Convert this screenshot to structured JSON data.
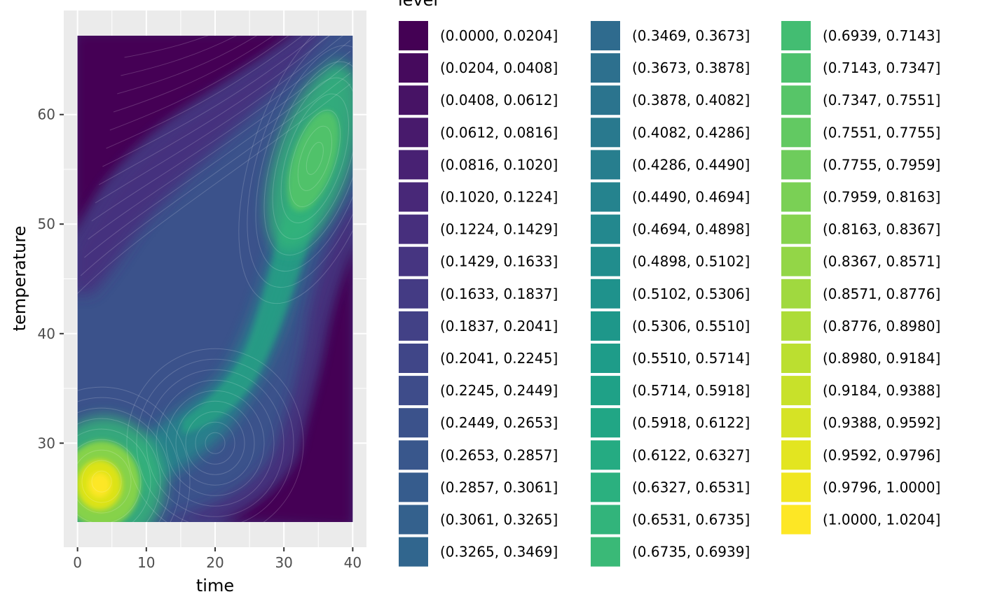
{
  "chart_data": {
    "type": "heatmap",
    "subtype": "filled-density-contour",
    "title": "",
    "xlabel": "time",
    "ylabel": "temperature",
    "xlim": [
      -2,
      42
    ],
    "ylim": [
      20.5,
      69.5
    ],
    "x_ticks": [
      0,
      10,
      20,
      30,
      40
    ],
    "y_ticks": [
      30,
      40,
      50,
      60
    ],
    "data_extent": {
      "x": [
        0,
        40
      ],
      "y": [
        22.8,
        67.2
      ]
    },
    "grid": true,
    "panel_background": "#ebebeb",
    "density_peaks": [
      {
        "x": 3.5,
        "y": 26.5,
        "level": "high"
      },
      {
        "x": 34.5,
        "y": 56,
        "level": "medium-high"
      },
      {
        "x": 20,
        "y": 30,
        "level": "medium"
      }
    ],
    "legend": {
      "title": "level",
      "placement": "right",
      "columns": 3,
      "entries": [
        {
          "label": "(0.0000, 0.0204]",
          "color": "#440154"
        },
        {
          "label": "(0.0204, 0.0408]",
          "color": "#460a5d"
        },
        {
          "label": "(0.0408, 0.0612]",
          "color": "#471365"
        },
        {
          "label": "(0.0612, 0.0816]",
          "color": "#481a6c"
        },
        {
          "label": "(0.0816, 0.1020]",
          "color": "#482173"
        },
        {
          "label": "(0.1020, 0.1224]",
          "color": "#482878"
        },
        {
          "label": "(0.1224, 0.1429]",
          "color": "#472f7d"
        },
        {
          "label": "(0.1429, 0.1633]",
          "color": "#463581"
        },
        {
          "label": "(0.1633, 0.1837]",
          "color": "#443b84"
        },
        {
          "label": "(0.1837, 0.2041]",
          "color": "#424186"
        },
        {
          "label": "(0.2041, 0.2245]",
          "color": "#404688"
        },
        {
          "label": "(0.2245, 0.2449]",
          "color": "#3e4c8a"
        },
        {
          "label": "(0.2449, 0.2653]",
          "color": "#3b528b"
        },
        {
          "label": "(0.2653, 0.2857]",
          "color": "#39578c"
        },
        {
          "label": "(0.2857, 0.3061]",
          "color": "#365c8d"
        },
        {
          "label": "(0.3061, 0.3265]",
          "color": "#34618d"
        },
        {
          "label": "(0.3265, 0.3469]",
          "color": "#31668e"
        },
        {
          "label": "(0.3469, 0.3673]",
          "color": "#2f6b8e"
        },
        {
          "label": "(0.3673, 0.3878]",
          "color": "#2d708e"
        },
        {
          "label": "(0.3878, 0.4082]",
          "color": "#2b748e"
        },
        {
          "label": "(0.4082, 0.4286]",
          "color": "#29798e"
        },
        {
          "label": "(0.4286, 0.4490]",
          "color": "#277e8e"
        },
        {
          "label": "(0.4490, 0.4694]",
          "color": "#25838e"
        },
        {
          "label": "(0.4694, 0.4898]",
          "color": "#23888e"
        },
        {
          "label": "(0.4898, 0.5102]",
          "color": "#218d8d"
        },
        {
          "label": "(0.5102, 0.5306]",
          "color": "#1f928c"
        },
        {
          "label": "(0.5306, 0.5510]",
          "color": "#1e978a"
        },
        {
          "label": "(0.5510, 0.5714]",
          "color": "#1e9c89"
        },
        {
          "label": "(0.5714, 0.5918]",
          "color": "#1fa187"
        },
        {
          "label": "(0.5918, 0.6122]",
          "color": "#21a685"
        },
        {
          "label": "(0.6122, 0.6327]",
          "color": "#25ab82"
        },
        {
          "label": "(0.6327, 0.6531]",
          "color": "#2bb07f"
        },
        {
          "label": "(0.6531, 0.6735]",
          "color": "#32b47b"
        },
        {
          "label": "(0.6735, 0.6939]",
          "color": "#3ab977"
        },
        {
          "label": "(0.6939, 0.7143]",
          "color": "#43bd72"
        },
        {
          "label": "(0.7143, 0.7347]",
          "color": "#4dc16d"
        },
        {
          "label": "(0.7347, 0.7551]",
          "color": "#57c568"
        },
        {
          "label": "(0.7551, 0.7755]",
          "color": "#62c962"
        },
        {
          "label": "(0.7755, 0.7959]",
          "color": "#6ecc5c"
        },
        {
          "label": "(0.7959, 0.8163]",
          "color": "#7ad055"
        },
        {
          "label": "(0.8163, 0.8367]",
          "color": "#86d34e"
        },
        {
          "label": "(0.8367, 0.8571]",
          "color": "#93d647"
        },
        {
          "label": "(0.8571, 0.8776]",
          "color": "#a0d93f"
        },
        {
          "label": "(0.8776, 0.8980]",
          "color": "#addc38"
        },
        {
          "label": "(0.8980, 0.9184]",
          "color": "#bbdf30"
        },
        {
          "label": "(0.9184, 0.9388]",
          "color": "#c8e12a"
        },
        {
          "label": "(0.9388, 0.9592]",
          "color": "#d6e325"
        },
        {
          "label": "(0.9592, 0.9796]",
          "color": "#e3e520"
        },
        {
          "label": "(0.9796, 1.0000]",
          "color": "#f0e620"
        },
        {
          "label": "(1.0000, 1.0204]",
          "color": "#fde725"
        }
      ]
    }
  }
}
